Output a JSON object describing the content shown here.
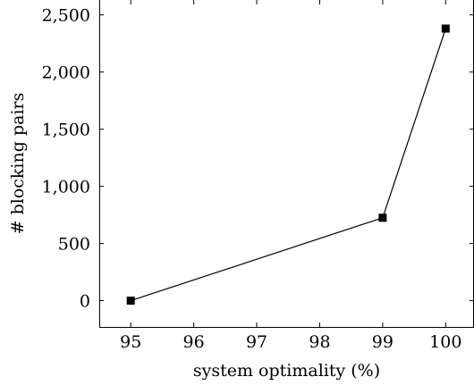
{
  "chart_data": {
    "type": "line",
    "title": "",
    "xlabel": "system optimality (%)",
    "ylabel": "# blocking pairs",
    "x_ticks": [
      "95",
      "96",
      "97",
      "98",
      "99",
      "100"
    ],
    "y_ticks": [
      "0",
      "500",
      "1,000",
      "1,500",
      "2,000",
      "2,500"
    ],
    "x_tick_values": [
      95,
      96,
      97,
      98,
      99,
      100
    ],
    "y_tick_values": [
      0,
      500,
      1000,
      1500,
      2000,
      2500
    ],
    "xlim": [
      94.5,
      100.45
    ],
    "ylim": [
      -230,
      2630
    ],
    "grid": false,
    "series": [
      {
        "marker": "square",
        "color": "#000000",
        "x": [
          95,
          99,
          100
        ],
        "y": [
          0,
          725,
          2380
        ]
      }
    ]
  }
}
